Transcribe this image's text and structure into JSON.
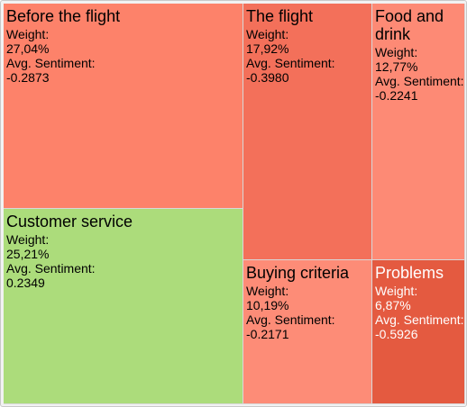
{
  "chart_data": {
    "type": "treemap",
    "weight_label": "Weight:",
    "sentiment_label": "Avg. Sentiment:",
    "items": [
      {
        "name": "Before the flight",
        "weight": "27,04%",
        "weight_value": 27.04,
        "sentiment": "-0.2873",
        "color": "#fd826a",
        "text_color": "#000000"
      },
      {
        "name": "Customer service",
        "weight": "25,21%",
        "weight_value": 25.21,
        "sentiment": "0.2349",
        "color": "#acdc7b",
        "text_color": "#000000"
      },
      {
        "name": "The flight",
        "weight": "17,92%",
        "weight_value": 17.92,
        "sentiment": "-0.3980",
        "color": "#f3705a",
        "text_color": "#000000"
      },
      {
        "name": "Food and drink",
        "weight": "12,77%",
        "weight_value": 12.77,
        "sentiment": "-0.2241",
        "color": "#fd8a75",
        "text_color": "#000000"
      },
      {
        "name": "Buying criteria",
        "weight": "10,19%",
        "weight_value": 10.19,
        "sentiment": "-0.2171",
        "color": "#fd8c77",
        "text_color": "#000000"
      },
      {
        "name": "Problems",
        "weight": "6,87%",
        "weight_value": 6.87,
        "sentiment": "-0.5926",
        "color": "#e45a40",
        "text_color": "#ffffff"
      }
    ]
  }
}
